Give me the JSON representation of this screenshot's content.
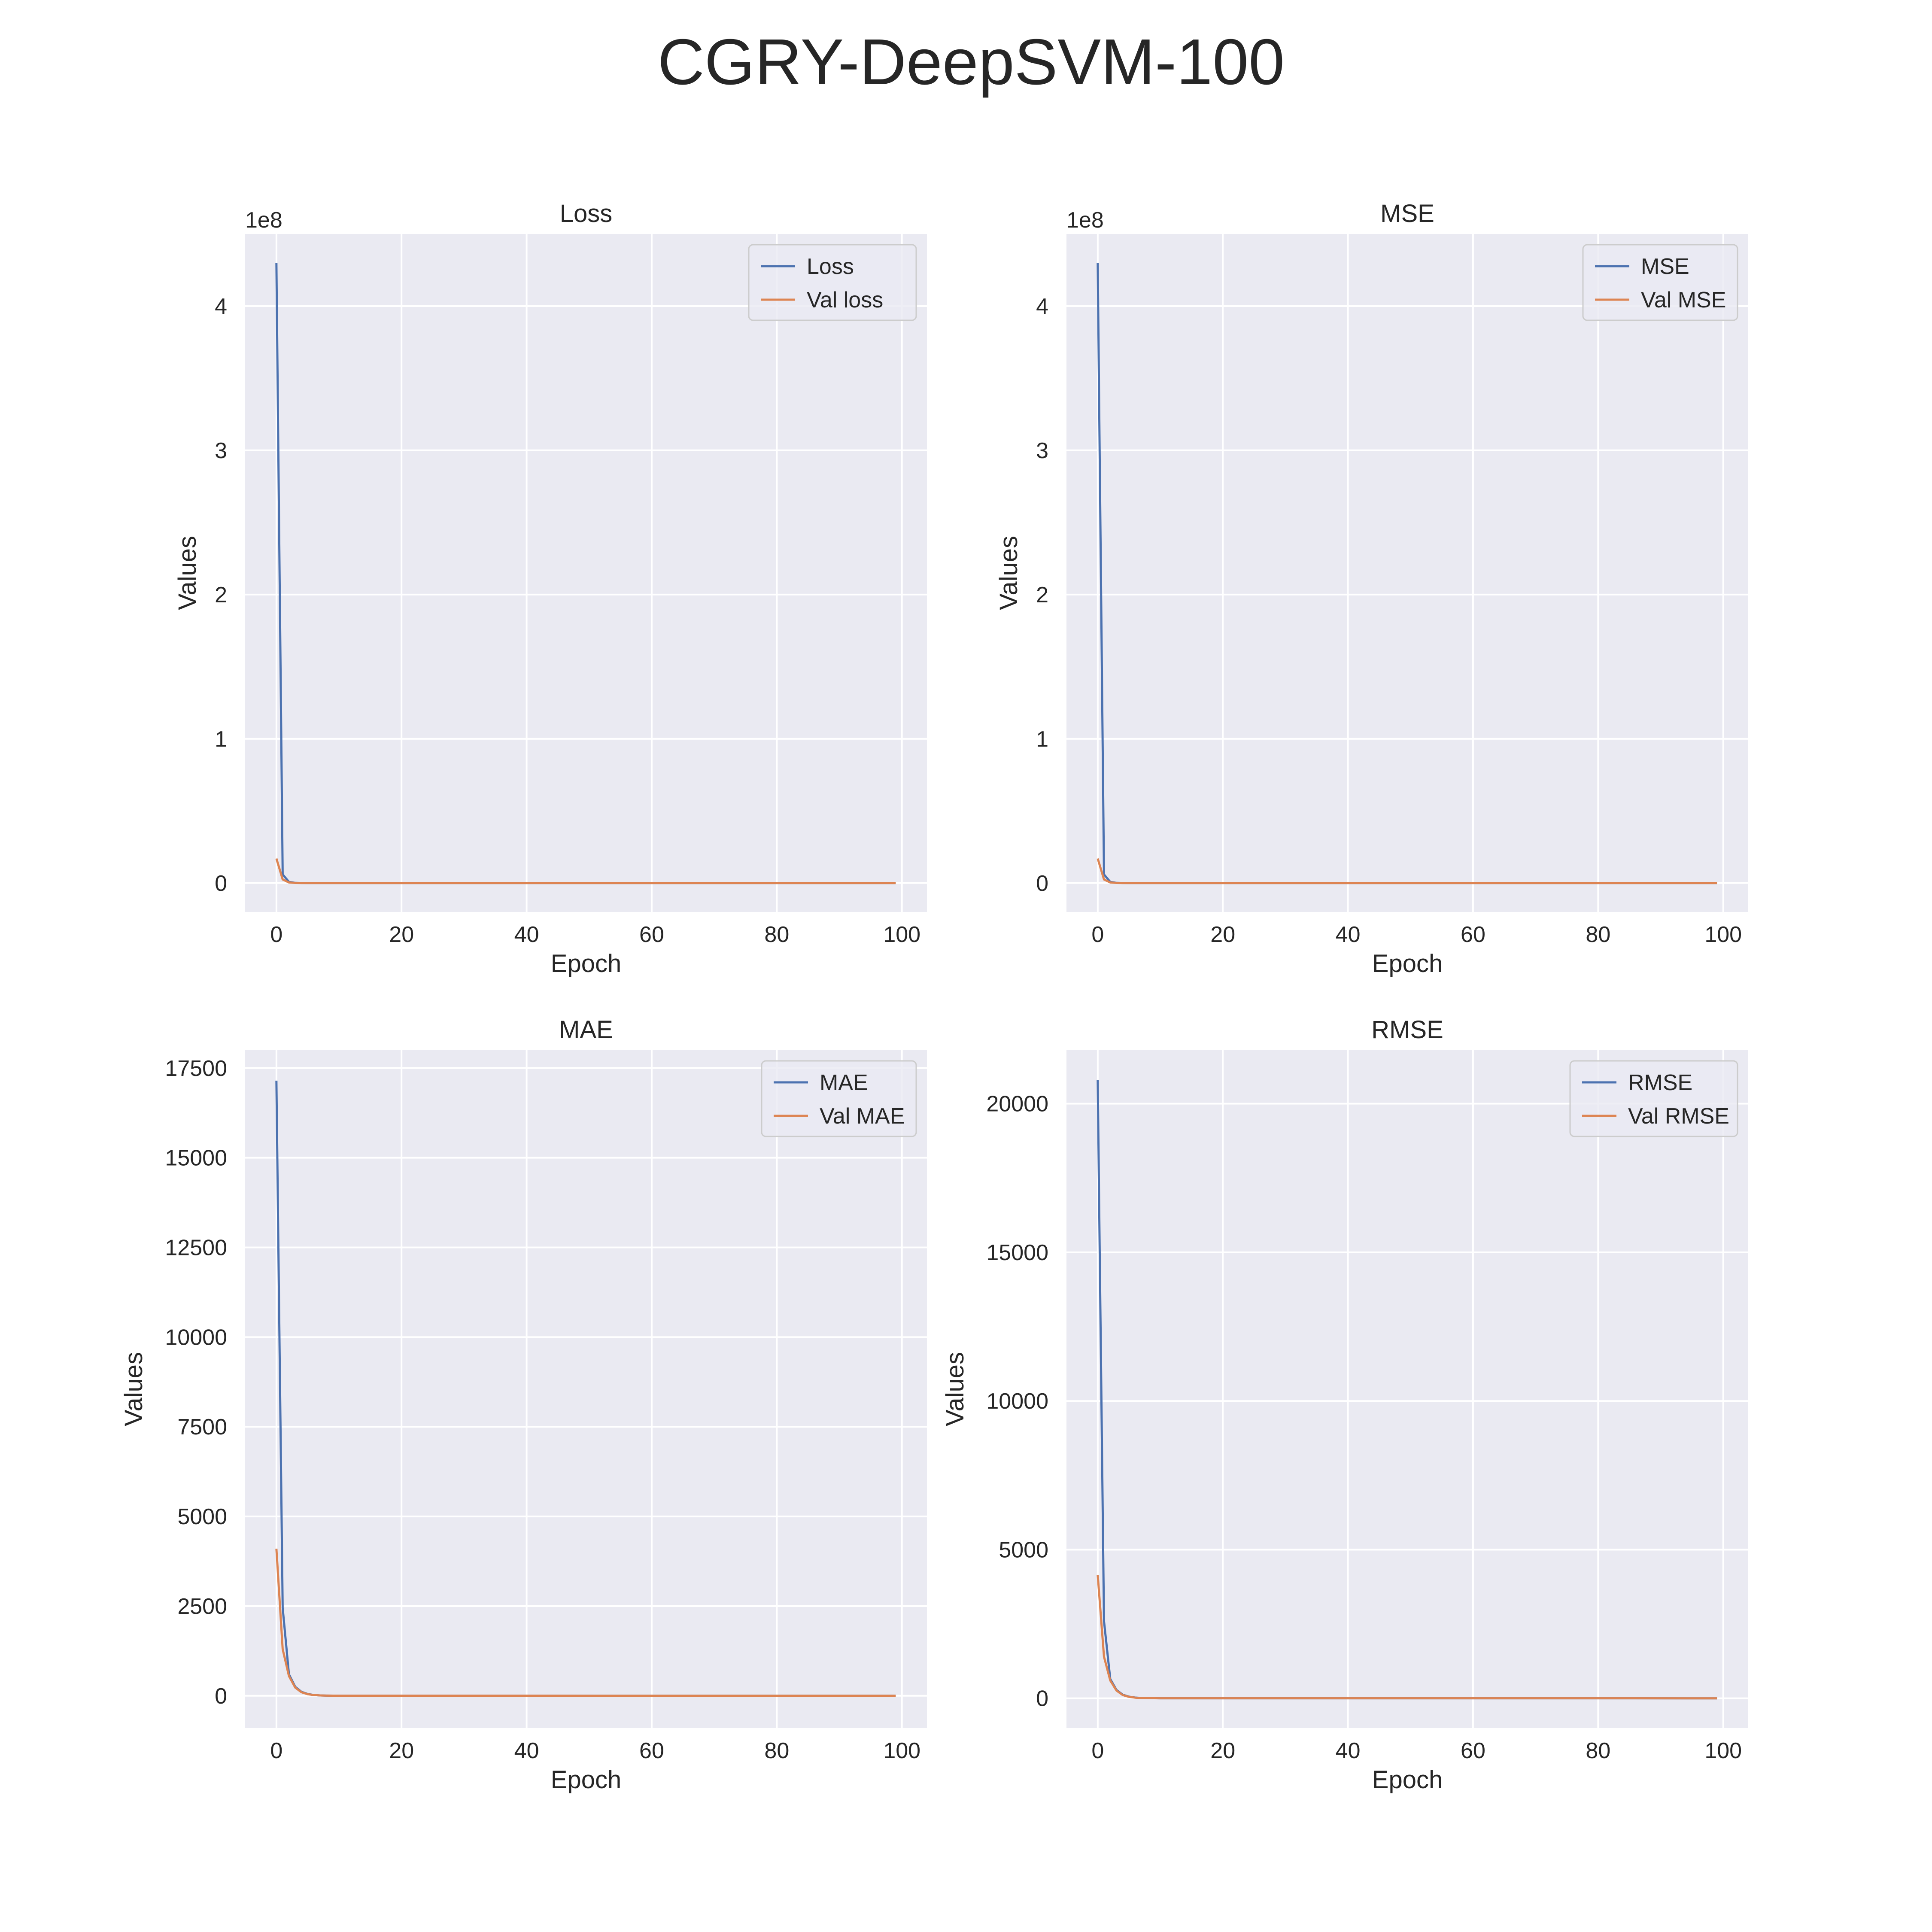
{
  "figure": {
    "title": "CGRY-DeepSVM-100",
    "background": "#ffffff",
    "axes_facecolor": "#eaeaf2",
    "grid_color": "#ffffff",
    "colors": {
      "train": "#4c72b0",
      "val": "#dd8452"
    }
  },
  "chart_data": [
    {
      "type": "line",
      "title": "Loss",
      "xlabel": "Epoch",
      "ylabel": "Values",
      "offset_label": "1e8",
      "scale": 100000000,
      "xlim": [
        -5,
        104
      ],
      "ylim": [
        -20000000,
        450000000
      ],
      "xticks": [
        0,
        20,
        40,
        60,
        80,
        100
      ],
      "yticks": [
        0,
        100000000,
        200000000,
        300000000,
        400000000
      ],
      "ytick_labels": [
        "0",
        "1",
        "2",
        "3",
        "4"
      ],
      "grid": true,
      "legend_position": "upper right",
      "series": [
        {
          "name": "Loss",
          "x": [
            0,
            1,
            2,
            3,
            4,
            5,
            99
          ],
          "y": [
            430000000,
            6000000,
            800000,
            150000,
            50000,
            10000,
            0
          ]
        },
        {
          "name": "Val loss",
          "x": [
            0,
            1,
            2,
            3,
            4,
            5,
            99
          ],
          "y": [
            17000000,
            2500000,
            400000,
            80000,
            20000,
            5000,
            0
          ]
        }
      ]
    },
    {
      "type": "line",
      "title": "MSE",
      "xlabel": "Epoch",
      "ylabel": "Values",
      "offset_label": "1e8",
      "scale": 100000000,
      "xlim": [
        -5,
        104
      ],
      "ylim": [
        -20000000,
        450000000
      ],
      "xticks": [
        0,
        20,
        40,
        60,
        80,
        100
      ],
      "yticks": [
        0,
        100000000,
        200000000,
        300000000,
        400000000
      ],
      "ytick_labels": [
        "0",
        "1",
        "2",
        "3",
        "4"
      ],
      "grid": true,
      "legend_position": "upper right",
      "series": [
        {
          "name": "MSE",
          "x": [
            0,
            1,
            2,
            3,
            4,
            5,
            99
          ],
          "y": [
            430000000,
            6000000,
            800000,
            150000,
            50000,
            10000,
            0
          ]
        },
        {
          "name": "Val MSE",
          "x": [
            0,
            1,
            2,
            3,
            4,
            5,
            99
          ],
          "y": [
            17000000,
            2500000,
            400000,
            80000,
            20000,
            5000,
            0
          ]
        }
      ]
    },
    {
      "type": "line",
      "title": "MAE",
      "xlabel": "Epoch",
      "ylabel": "Values",
      "offset_label": "",
      "scale": 1,
      "xlim": [
        -5,
        104
      ],
      "ylim": [
        -900,
        18000
      ],
      "xticks": [
        0,
        20,
        40,
        60,
        80,
        100
      ],
      "yticks": [
        0,
        2500,
        5000,
        7500,
        10000,
        12500,
        15000,
        17500
      ],
      "ytick_labels": [
        "0",
        "2500",
        "5000",
        "7500",
        "10000",
        "12500",
        "15000",
        "17500"
      ],
      "grid": true,
      "legend_position": "upper right",
      "series": [
        {
          "name": "MAE",
          "x": [
            0,
            1,
            2,
            3,
            4,
            5,
            6,
            7,
            8,
            10,
            99
          ],
          "y": [
            17150,
            2450,
            600,
            250,
            110,
            50,
            20,
            10,
            5,
            2,
            0
          ]
        },
        {
          "name": "Val MAE",
          "x": [
            0,
            1,
            2,
            3,
            4,
            5,
            6,
            7,
            8,
            10,
            99
          ],
          "y": [
            4100,
            1300,
            550,
            230,
            100,
            45,
            20,
            10,
            5,
            2,
            0
          ]
        }
      ]
    },
    {
      "type": "line",
      "title": "RMSE",
      "xlabel": "Epoch",
      "ylabel": "Values",
      "offset_label": "",
      "scale": 1,
      "xlim": [
        -5,
        104
      ],
      "ylim": [
        -1000,
        21800
      ],
      "xticks": [
        0,
        20,
        40,
        60,
        80,
        100
      ],
      "yticks": [
        0,
        5000,
        10000,
        15000,
        20000
      ],
      "ytick_labels": [
        "0",
        "5000",
        "10000",
        "15000",
        "20000"
      ],
      "grid": true,
      "legend_position": "upper right",
      "series": [
        {
          "name": "RMSE",
          "x": [
            0,
            1,
            2,
            3,
            4,
            5,
            6,
            7,
            8,
            10,
            99
          ],
          "y": [
            20800,
            2600,
            650,
            280,
            120,
            55,
            25,
            12,
            6,
            2,
            0
          ]
        },
        {
          "name": "Val RMSE",
          "x": [
            0,
            1,
            2,
            3,
            4,
            5,
            6,
            7,
            8,
            10,
            99
          ],
          "y": [
            4150,
            1400,
            600,
            260,
            110,
            50,
            22,
            10,
            5,
            2,
            0
          ]
        }
      ]
    }
  ]
}
